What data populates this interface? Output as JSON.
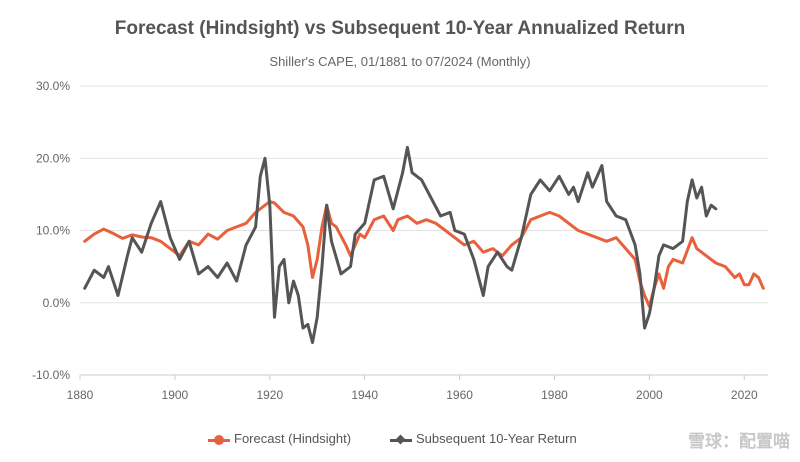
{
  "chart_data": {
    "type": "line",
    "title": "Forecast (Hindsight) vs Subsequent 10-Year Annualized Return",
    "subtitle": "Shiller's CAPE, 01/1881 to 07/2024 (Monthly)",
    "xlabel": "",
    "ylabel": "",
    "xlim": [
      1880,
      2025
    ],
    "ylim": [
      -10,
      30
    ],
    "x_ticks": [
      "1880",
      "1900",
      "1920",
      "1940",
      "1960",
      "1980",
      "2000",
      "2020"
    ],
    "y_ticks": [
      "30.0%",
      "20.0%",
      "10.0%",
      "0.0%",
      "-10.0%"
    ],
    "grid": "horizontal",
    "legend_position": "bottom",
    "series": [
      {
        "name": "Forecast (Hindsight)",
        "color": "#e8603c",
        "points": [
          [
            1881,
            8.5
          ],
          [
            1883,
            9.5
          ],
          [
            1885,
            10.2
          ],
          [
            1887,
            9.6
          ],
          [
            1889,
            8.9
          ],
          [
            1891,
            9.4
          ],
          [
            1893,
            9.1
          ],
          [
            1895,
            9.0
          ],
          [
            1897,
            8.5
          ],
          [
            1899,
            7.5
          ],
          [
            1901,
            6.5
          ],
          [
            1903,
            8.5
          ],
          [
            1905,
            8.0
          ],
          [
            1907,
            9.5
          ],
          [
            1909,
            8.8
          ],
          [
            1911,
            10.0
          ],
          [
            1913,
            10.5
          ],
          [
            1915,
            11.0
          ],
          [
            1917,
            12.5
          ],
          [
            1919,
            13.5
          ],
          [
            1920,
            14.0
          ],
          [
            1921,
            13.8
          ],
          [
            1923,
            12.5
          ],
          [
            1925,
            12.0
          ],
          [
            1927,
            10.5
          ],
          [
            1928,
            8.0
          ],
          [
            1929,
            3.5
          ],
          [
            1930,
            6.0
          ],
          [
            1931,
            10.5
          ],
          [
            1932,
            13.5
          ],
          [
            1933,
            11.0
          ],
          [
            1934,
            10.5
          ],
          [
            1936,
            8.0
          ],
          [
            1937,
            6.5
          ],
          [
            1939,
            9.5
          ],
          [
            1940,
            9.0
          ],
          [
            1942,
            11.5
          ],
          [
            1944,
            12.0
          ],
          [
            1946,
            10.0
          ],
          [
            1947,
            11.5
          ],
          [
            1949,
            12.0
          ],
          [
            1951,
            11.0
          ],
          [
            1953,
            11.5
          ],
          [
            1955,
            11.0
          ],
          [
            1957,
            10.0
          ],
          [
            1959,
            9.0
          ],
          [
            1961,
            8.0
          ],
          [
            1963,
            8.5
          ],
          [
            1965,
            7.0
          ],
          [
            1967,
            7.5
          ],
          [
            1969,
            6.5
          ],
          [
            1971,
            8.0
          ],
          [
            1973,
            9.0
          ],
          [
            1975,
            11.5
          ],
          [
            1977,
            12.0
          ],
          [
            1979,
            12.5
          ],
          [
            1981,
            12.0
          ],
          [
            1983,
            11.0
          ],
          [
            1985,
            10.0
          ],
          [
            1987,
            9.5
          ],
          [
            1989,
            9.0
          ],
          [
            1991,
            8.5
          ],
          [
            1993,
            9.0
          ],
          [
            1995,
            7.5
          ],
          [
            1997,
            6.0
          ],
          [
            1998,
            3.0
          ],
          [
            1999,
            1.0
          ],
          [
            2000,
            -0.5
          ],
          [
            2001,
            2.0
          ],
          [
            2002,
            4.0
          ],
          [
            2003,
            2.0
          ],
          [
            2004,
            5.0
          ],
          [
            2005,
            6.0
          ],
          [
            2007,
            5.5
          ],
          [
            2009,
            9.0
          ],
          [
            2010,
            7.5
          ],
          [
            2012,
            6.5
          ],
          [
            2014,
            5.5
          ],
          [
            2016,
            5.0
          ],
          [
            2018,
            3.5
          ],
          [
            2019,
            4.0
          ],
          [
            2020,
            2.5
          ],
          [
            2021,
            2.5
          ],
          [
            2022,
            4.0
          ],
          [
            2023,
            3.5
          ],
          [
            2024,
            2.0
          ]
        ]
      },
      {
        "name": "Subsequent 10-Year Return",
        "color": "#555555",
        "points": [
          [
            1881,
            2.0
          ],
          [
            1883,
            4.5
          ],
          [
            1885,
            3.5
          ],
          [
            1886,
            5.0
          ],
          [
            1888,
            1.0
          ],
          [
            1890,
            6.5
          ],
          [
            1891,
            9.0
          ],
          [
            1893,
            7.0
          ],
          [
            1895,
            11.0
          ],
          [
            1897,
            14.0
          ],
          [
            1899,
            9.0
          ],
          [
            1901,
            6.0
          ],
          [
            1903,
            8.5
          ],
          [
            1905,
            4.0
          ],
          [
            1907,
            5.0
          ],
          [
            1909,
            3.5
          ],
          [
            1911,
            5.5
          ],
          [
            1913,
            3.0
          ],
          [
            1915,
            8.0
          ],
          [
            1917,
            10.5
          ],
          [
            1918,
            17.5
          ],
          [
            1919,
            20.0
          ],
          [
            1920,
            13.5
          ],
          [
            1921,
            -2.0
          ],
          [
            1922,
            5.0
          ],
          [
            1923,
            6.0
          ],
          [
            1924,
            0.0
          ],
          [
            1925,
            3.0
          ],
          [
            1926,
            1.0
          ],
          [
            1927,
            -3.5
          ],
          [
            1928,
            -3.0
          ],
          [
            1929,
            -5.5
          ],
          [
            1930,
            -2.0
          ],
          [
            1931,
            5.0
          ],
          [
            1932,
            13.5
          ],
          [
            1933,
            8.5
          ],
          [
            1935,
            4.0
          ],
          [
            1937,
            5.0
          ],
          [
            1938,
            9.5
          ],
          [
            1940,
            11.0
          ],
          [
            1942,
            17.0
          ],
          [
            1944,
            17.5
          ],
          [
            1946,
            13.0
          ],
          [
            1948,
            18.0
          ],
          [
            1949,
            21.5
          ],
          [
            1950,
            18.0
          ],
          [
            1952,
            17.0
          ],
          [
            1954,
            14.5
          ],
          [
            1956,
            12.0
          ],
          [
            1958,
            12.5
          ],
          [
            1959,
            10.0
          ],
          [
            1961,
            9.5
          ],
          [
            1963,
            6.0
          ],
          [
            1965,
            1.0
          ],
          [
            1966,
            5.0
          ],
          [
            1968,
            7.0
          ],
          [
            1970,
            5.0
          ],
          [
            1971,
            4.5
          ],
          [
            1973,
            9.0
          ],
          [
            1975,
            15.0
          ],
          [
            1977,
            17.0
          ],
          [
            1979,
            15.5
          ],
          [
            1981,
            17.5
          ],
          [
            1983,
            15.0
          ],
          [
            1984,
            16.0
          ],
          [
            1985,
            14.0
          ],
          [
            1987,
            18.0
          ],
          [
            1988,
            16.0
          ],
          [
            1990,
            19.0
          ],
          [
            1991,
            14.0
          ],
          [
            1993,
            12.0
          ],
          [
            1995,
            11.5
          ],
          [
            1997,
            8.0
          ],
          [
            1998,
            4.0
          ],
          [
            1999,
            -3.5
          ],
          [
            2000,
            -1.5
          ],
          [
            2001,
            2.0
          ],
          [
            2002,
            6.5
          ],
          [
            2003,
            8.0
          ],
          [
            2005,
            7.5
          ],
          [
            2007,
            8.5
          ],
          [
            2008,
            14.0
          ],
          [
            2009,
            17.0
          ],
          [
            2010,
            14.5
          ],
          [
            2011,
            16.0
          ],
          [
            2012,
            12.0
          ],
          [
            2013,
            13.5
          ],
          [
            2014,
            13.0
          ]
        ]
      }
    ]
  },
  "watermark": "雪球：配置喵"
}
